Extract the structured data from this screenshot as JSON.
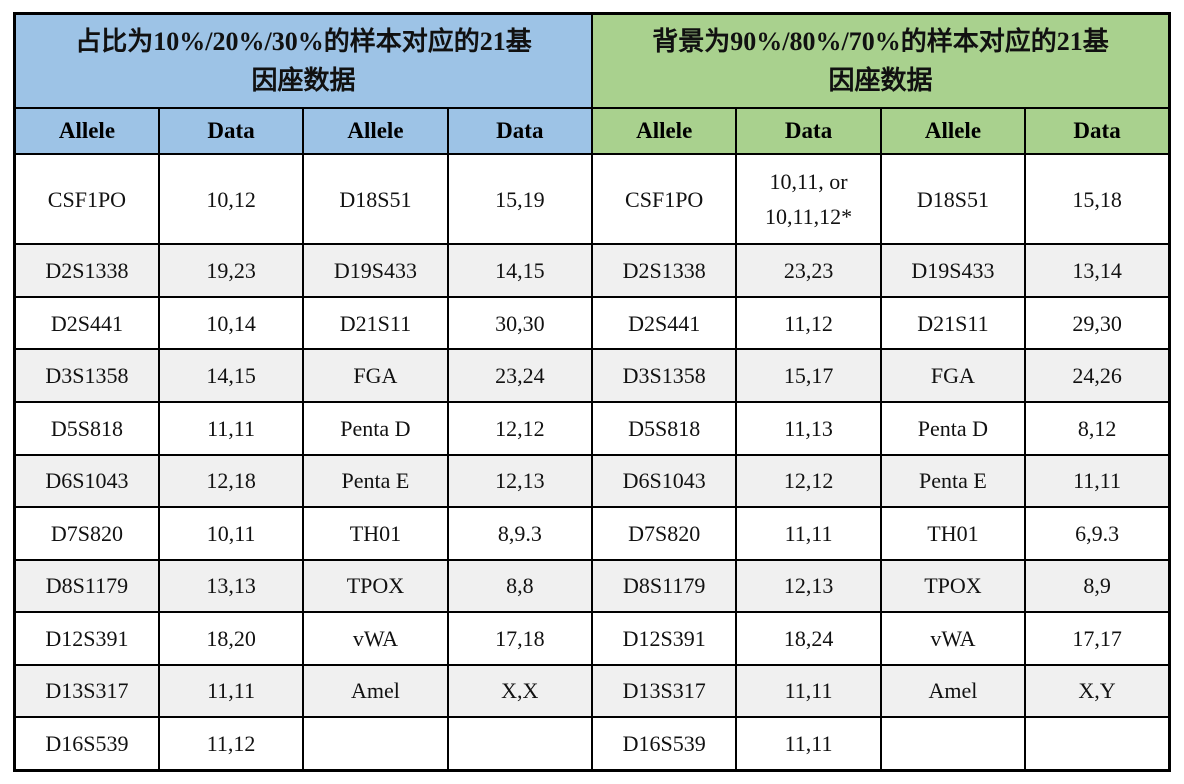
{
  "colors": {
    "left_header_bg": "#9DC3E6",
    "right_header_bg": "#A9D18E",
    "row_bg": "#FFFFFF",
    "row_alt_bg": "#F0F0F0",
    "border": "#000000",
    "text": "#111111"
  },
  "left": {
    "title": "占比为10%/20%/30%的样本对应的21基\n因座数据",
    "columns": [
      "Allele",
      "Data",
      "Allele",
      "Data"
    ],
    "rows": [
      [
        "CSF1PO",
        "10,12",
        "D18S51",
        "15,19"
      ],
      [
        "D2S1338",
        "19,23",
        "D19S433",
        "14,15"
      ],
      [
        "D2S441",
        "10,14",
        "D21S11",
        "30,30"
      ],
      [
        "D3S1358",
        "14,15",
        "FGA",
        "23,24"
      ],
      [
        "D5S818",
        "11,11",
        "Penta D",
        "12,12"
      ],
      [
        "D6S1043",
        "12,18",
        "Penta E",
        "12,13"
      ],
      [
        "D7S820",
        "10,11",
        "TH01",
        "8,9.3"
      ],
      [
        "D8S1179",
        "13,13",
        "TPOX",
        "8,8"
      ],
      [
        "D12S391",
        "18,20",
        "vWA",
        "17,18"
      ],
      [
        "D13S317",
        "11,11",
        "Amel",
        "X,X"
      ],
      [
        "D16S539",
        "11,12",
        "",
        ""
      ]
    ]
  },
  "right": {
    "title": "背景为90%/80%/70%的样本对应的21基\n因座数据",
    "columns": [
      "Allele",
      "Data",
      "Allele",
      "Data"
    ],
    "rows": [
      [
        "CSF1PO",
        "10,11, or\n10,11,12*",
        "D18S51",
        "15,18"
      ],
      [
        "D2S1338",
        "23,23",
        "D19S433",
        "13,14"
      ],
      [
        "D2S441",
        "11,12",
        "D21S11",
        "29,30"
      ],
      [
        "D3S1358",
        "15,17",
        "FGA",
        "24,26"
      ],
      [
        "D5S818",
        "11,13",
        "Penta D",
        "8,12"
      ],
      [
        "D6S1043",
        "12,12",
        "Penta E",
        "11,11"
      ],
      [
        "D7S820",
        "11,11",
        "TH01",
        "6,9.3"
      ],
      [
        "D8S1179",
        "12,13",
        "TPOX",
        "8,9"
      ],
      [
        "D12S391",
        "18,24",
        "vWA",
        "17,17"
      ],
      [
        "D13S317",
        "11,11",
        "Amel",
        "X,Y"
      ],
      [
        "D16S539",
        "11,11",
        "",
        ""
      ]
    ]
  }
}
